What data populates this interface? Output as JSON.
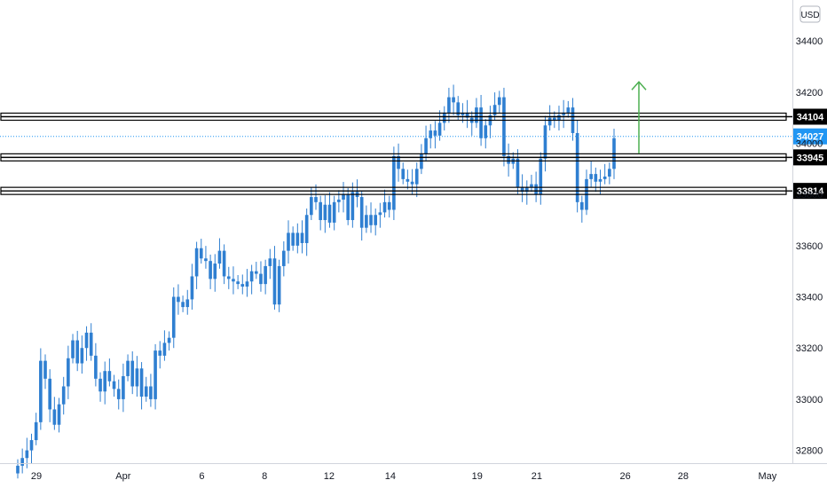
{
  "chart_data": {
    "type": "candlestick",
    "currency": "USD",
    "colors": {
      "candle": "#2f7fd1",
      "level_line": "#000000",
      "current_price": "#2196f3",
      "arrow": "#4caf50"
    },
    "ylim": [
      32750,
      34560
    ],
    "y_ticks": [
      "32800",
      "33000",
      "33200",
      "33400",
      "33600",
      "33800",
      "34000",
      "34200",
      "34400"
    ],
    "x_ticks": [
      {
        "label": "29",
        "pos": 0.044
      },
      {
        "label": "Apr",
        "pos": 0.149
      },
      {
        "label": "6",
        "pos": 0.244
      },
      {
        "label": "8",
        "pos": 0.32
      },
      {
        "label": "12",
        "pos": 0.398
      },
      {
        "label": "14",
        "pos": 0.472
      },
      {
        "label": "19",
        "pos": 0.577
      },
      {
        "label": "21",
        "pos": 0.649
      },
      {
        "label": "26",
        "pos": 0.756
      },
      {
        "label": "28",
        "pos": 0.826
      },
      {
        "label": "May",
        "pos": 0.928
      }
    ],
    "levels": [
      {
        "label": "34104",
        "value": 34104
      },
      {
        "label": "33945",
        "value": 33945
      },
      {
        "label": "33814",
        "value": 33814
      }
    ],
    "current_price": {
      "label": "34027",
      "value": 34027
    },
    "arrow": {
      "from": 33960,
      "to": 34240
    },
    "closes": [
      32740,
      32770,
      32800,
      32840,
      32910,
      33150,
      33080,
      32960,
      32900,
      32980,
      33050,
      33160,
      33230,
      33140,
      33200,
      33260,
      33170,
      33080,
      33030,
      33110,
      33070,
      33040,
      33000,
      33090,
      33150,
      33050,
      33120,
      33010,
      33050,
      33000,
      33190,
      33170,
      33220,
      33240,
      33400,
      33380,
      33360,
      33390,
      33480,
      33590,
      33550,
      33540,
      33470,
      33530,
      33580,
      33480,
      33470,
      33460,
      33450,
      33440,
      33460,
      33500,
      33490,
      33450,
      33520,
      33550,
      33370,
      33520,
      33580,
      33650,
      33600,
      33650,
      33610,
      33720,
      33790,
      33770,
      33700,
      33760,
      33690,
      33770,
      33780,
      33800,
      33700,
      33810,
      33790,
      33670,
      33720,
      33680,
      33720,
      33730,
      33770,
      33740,
      33950,
      33900,
      33860,
      33850,
      33840,
      33900,
      33960,
      34020,
      34050,
      34030,
      34080,
      34120,
      34180,
      34160,
      34110,
      34120,
      34100,
      34080,
      34140,
      34020,
      34070,
      34110,
      34150,
      34180,
      33950,
      33920,
      33940,
      33830,
      33810,
      33830,
      33840,
      33800,
      33940,
      34070,
      34100,
      34090,
      34110,
      34120,
      34140,
      34040,
      33770,
      33740,
      33860,
      33880,
      33850,
      33860,
      33870,
      33900,
      34020
    ]
  }
}
